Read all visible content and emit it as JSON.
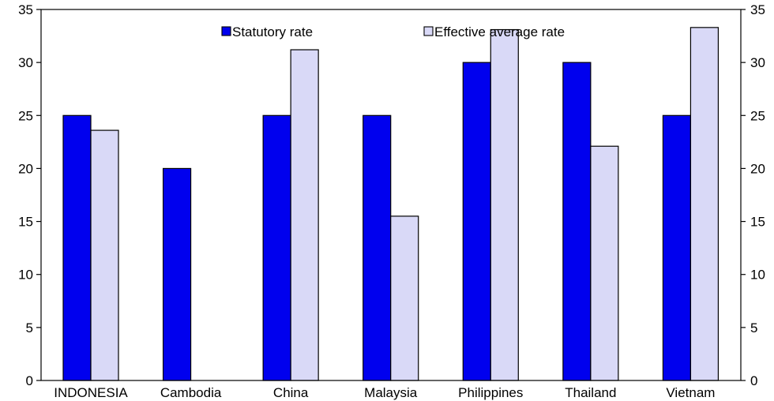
{
  "chart_data": {
    "type": "bar",
    "categories": [
      "INDONESIA",
      "Cambodia",
      "China",
      "Malaysia",
      "Philippines",
      "Thailand",
      "Vietnam"
    ],
    "series": [
      {
        "name": "Statutory rate",
        "color": "#0000ee",
        "values": [
          25,
          20,
          25,
          25,
          30,
          30,
          25
        ]
      },
      {
        "name": "Effective average rate",
        "color": "#d9d9f7",
        "values": [
          23.6,
          null,
          31.2,
          15.5,
          33.1,
          22.1,
          33.3
        ]
      }
    ],
    "ylim": [
      0,
      35
    ],
    "yticks": [
      0,
      5,
      10,
      15,
      20,
      25,
      30,
      35
    ],
    "ytick_labels_left": [
      "0",
      "5",
      "10",
      "15",
      "20",
      "25",
      "30",
      "35"
    ],
    "ytick_labels_right": [
      "0",
      "5",
      "10",
      "15",
      "20",
      "25",
      "30",
      "35"
    ],
    "legend_position": "top-center",
    "grid": false
  }
}
